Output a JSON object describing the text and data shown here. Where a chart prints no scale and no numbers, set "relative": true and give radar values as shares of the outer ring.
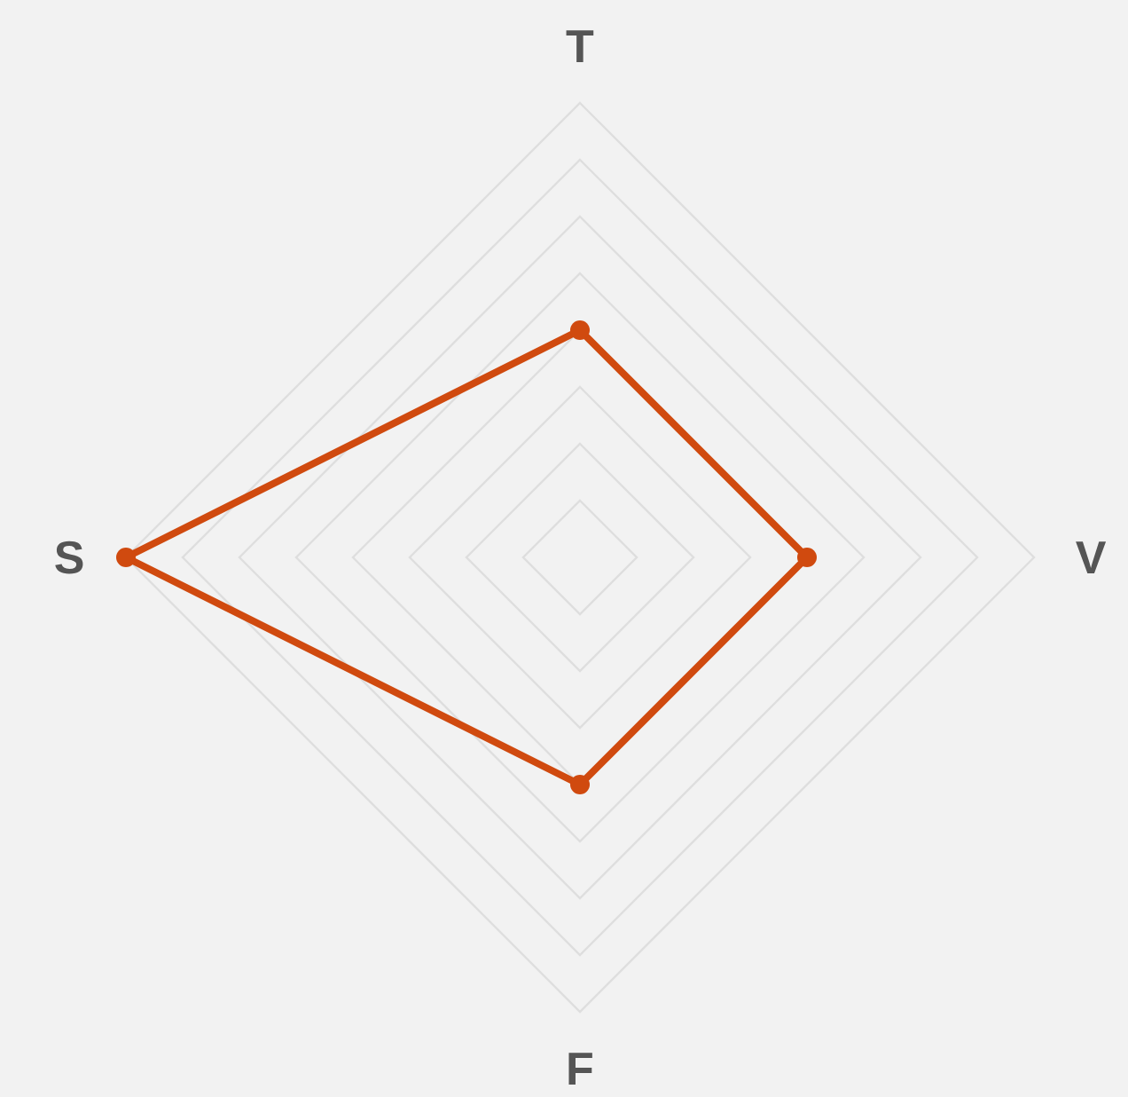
{
  "chart_data": {
    "type": "radar",
    "categories": [
      "T",
      "V",
      "F",
      "S"
    ],
    "relative": true,
    "grid": true,
    "marker": "circle",
    "series": [
      {
        "color": "#d04a0f",
        "values": [
          0.5,
          0.5,
          0.5,
          1
        ]
      }
    ]
  }
}
